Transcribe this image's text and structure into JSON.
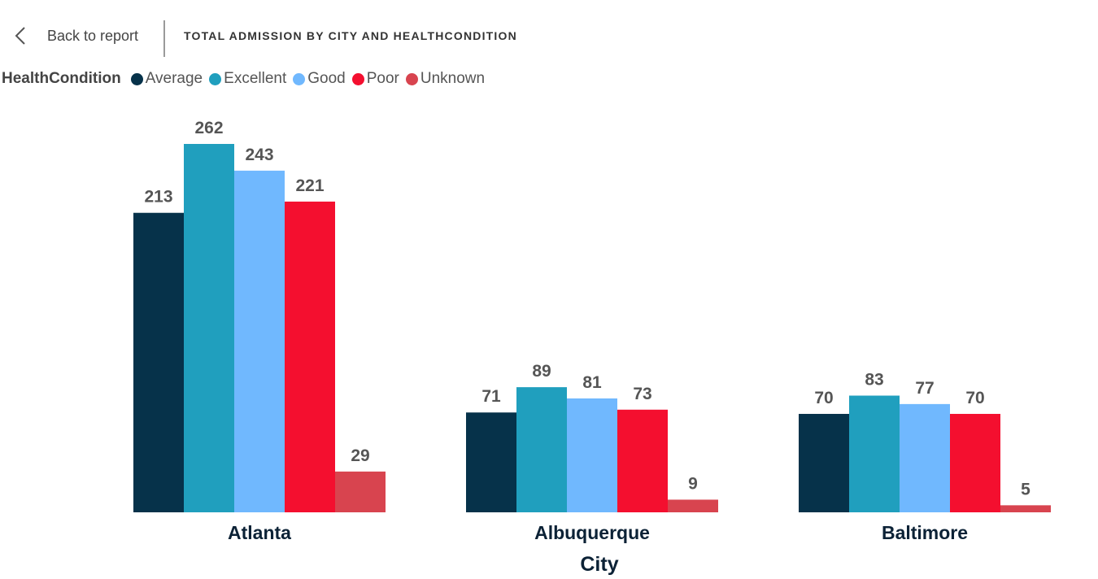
{
  "header": {
    "back_label": "Back to report",
    "title": "TOTAL ADMISSION BY CITY AND HEALTHCONDITION"
  },
  "legend": {
    "title": "HealthCondition",
    "items": [
      {
        "label": "Average",
        "color": "#06324a"
      },
      {
        "label": "Excellent",
        "color": "#209fbe"
      },
      {
        "label": "Good",
        "color": "#70b8fe"
      },
      {
        "label": "Poor",
        "color": "#f40f2f"
      },
      {
        "label": "Unknown",
        "color": "#d8444f"
      }
    ]
  },
  "chart_data": {
    "type": "bar",
    "title": "TOTAL ADMISSION BY CITY AND HEALTHCONDITION",
    "xlabel": "City",
    "ylabel": "",
    "categories": [
      "Atlanta",
      "Albuquerque",
      "Baltimore"
    ],
    "series": [
      {
        "name": "Average",
        "color": "#06324a",
        "values": [
          213,
          71,
          70
        ]
      },
      {
        "name": "Excellent",
        "color": "#209fbe",
        "values": [
          262,
          89,
          83
        ]
      },
      {
        "name": "Good",
        "color": "#70b8fe",
        "values": [
          243,
          81,
          77
        ]
      },
      {
        "name": "Poor",
        "color": "#f40f2f",
        "values": [
          221,
          73,
          70
        ]
      },
      {
        "name": "Unknown",
        "color": "#d8444f",
        "values": [
          29,
          9,
          5
        ]
      }
    ],
    "ylim": [
      0,
      262
    ],
    "grid": false,
    "legend_position": "top-left",
    "data_labels": true
  }
}
